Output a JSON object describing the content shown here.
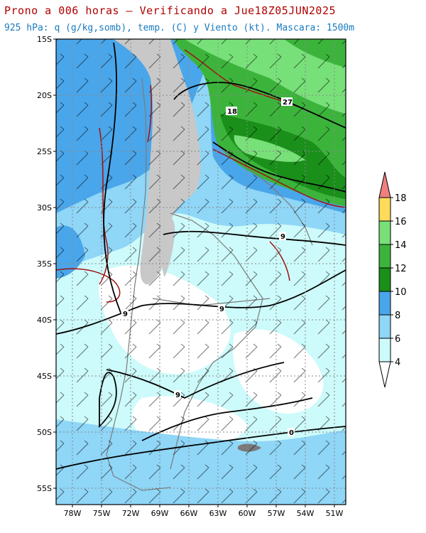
{
  "title": {
    "line1": "Prono a 006 horas — Verificando a Jue18Z05JUN2025",
    "line2": "925 hPa: q (g/kg,somb), temp. (C) y Viento (kt). Mascara: 1500m"
  },
  "map": {
    "lat_labels": [
      "15S",
      "20S",
      "25S",
      "30S",
      "35S",
      "40S",
      "45S",
      "50S",
      "55S"
    ],
    "lon_labels": [
      "78W",
      "75W",
      "72W",
      "69W",
      "66W",
      "63W",
      "60W",
      "57W",
      "54W",
      "51W"
    ],
    "contour_labels": [
      "27",
      "18",
      "9",
      "9",
      "9",
      "9",
      "0"
    ]
  },
  "colorbar": {
    "levels": [
      "4",
      "6",
      "8",
      "10",
      "12",
      "14",
      "16",
      "18"
    ],
    "colors": [
      "#ffffff",
      "#cdfafa",
      "#8fd6f7",
      "#4aa6ea",
      "#1a8f1a",
      "#3cb43c",
      "#78e078",
      "#ffdb5c",
      "#f08080"
    ]
  }
}
